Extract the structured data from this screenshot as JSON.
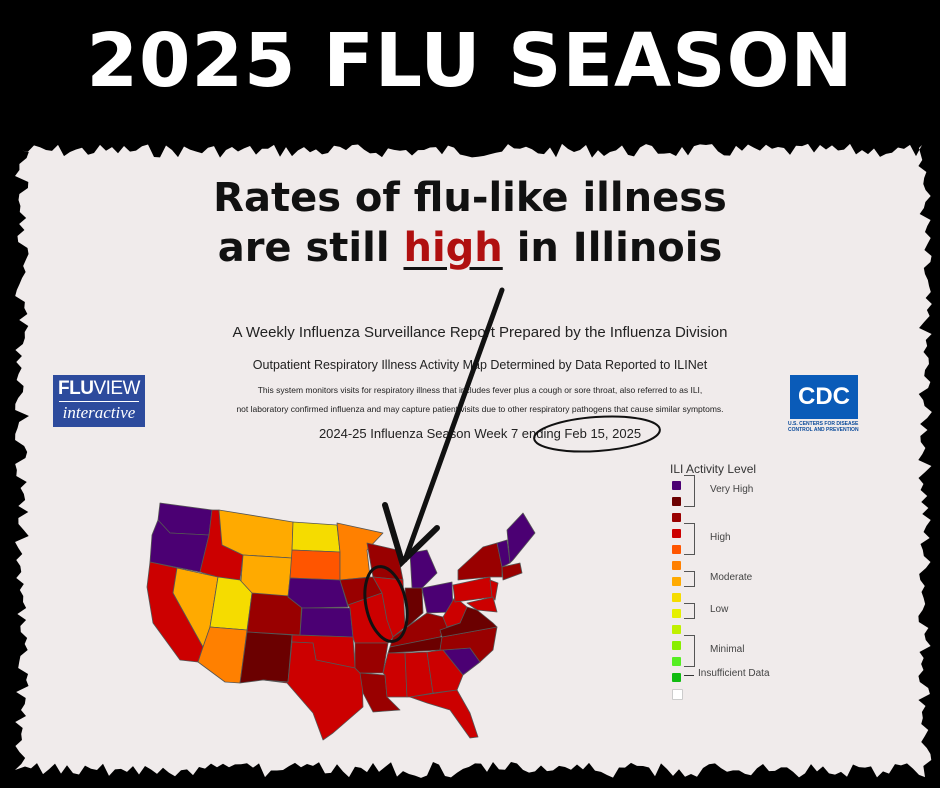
{
  "headline": "2025 FLU SEASON",
  "annotation": {
    "line1": "Rates of flu-like illness",
    "line2_pre": "are still ",
    "line2_highlight": "high",
    "line2_post": " in Illinois",
    "highlight_color": "#b01010"
  },
  "report": {
    "title": "A Weekly Influenza Surveillance Report Prepared by the Influenza Division",
    "subtitle": "Outpatient Respiratory Illness Activity Map Determined by Data Reported to ILINet",
    "note_line1": "This system monitors visits for respiratory illness that includes fever plus a cough or sore throat, also referred to as ILI,",
    "note_line2": "not laboratory confirmed influenza and may capture patient visits due to other respiratory pathogens that cause similar symptoms.",
    "season": "2024-25 Influenza Season Week 7 ending Feb 15, 2025"
  },
  "logos": {
    "fluview_bold": "FLU",
    "fluview_rest": "VIEW",
    "fluview_sub": "interactive",
    "cdc": "CDC",
    "cdc_sub": "U.S. CENTERS FOR DISEASE CONTROL AND PREVENTION"
  },
  "legend": {
    "title": "ILI Activity Level",
    "levels": [
      {
        "level": 13,
        "color": "#4b0073"
      },
      {
        "level": 12,
        "color": "#6b0000"
      },
      {
        "level": 11,
        "color": "#990000"
      },
      {
        "level": 10,
        "color": "#cc0000"
      },
      {
        "level": 9,
        "color": "#ff5500"
      },
      {
        "level": 8,
        "color": "#ff8000"
      },
      {
        "level": 7,
        "color": "#ffaa00"
      },
      {
        "level": 6,
        "color": "#f5dc00"
      },
      {
        "level": 5,
        "color": "#e5f000"
      },
      {
        "level": 4,
        "color": "#c0f000"
      },
      {
        "level": 3,
        "color": "#88ee00"
      },
      {
        "level": 2,
        "color": "#55ee22"
      },
      {
        "level": 1,
        "color": "#11bb11"
      },
      {
        "level": 0,
        "color": "#ffffff"
      }
    ],
    "groups": {
      "very_high": "Very High",
      "high": "High",
      "moderate": "Moderate",
      "low": "Low",
      "minimal": "Minimal",
      "insufficient": "Insufficient Data"
    }
  },
  "states": {
    "WA": 13,
    "OR": 13,
    "CA": 10,
    "NV": 7,
    "ID": 10,
    "MT": 7,
    "WY": 7,
    "UT": 6,
    "CO": 11,
    "AZ": 8,
    "NM": 12,
    "ND": 6,
    "SD": 9,
    "NE": 13,
    "KS": 13,
    "OK": 10,
    "TX": 10,
    "MN": 8,
    "IA": 11,
    "MO": 10,
    "AR": 11,
    "LA": 11,
    "WI": 11,
    "IL": 10,
    "MI": 13,
    "IN": 12,
    "OH": 13,
    "KY": 11,
    "TN": 12,
    "MS": 10,
    "AL": 10,
    "GA": 10,
    "FL": 10,
    "SC": 13,
    "NC": 11,
    "VA": 12,
    "WV": 10,
    "PA": 10,
    "NY": 11,
    "NJ": 10,
    "MD": 10,
    "VT": 13,
    "ME": 13,
    "MA": 11
  }
}
